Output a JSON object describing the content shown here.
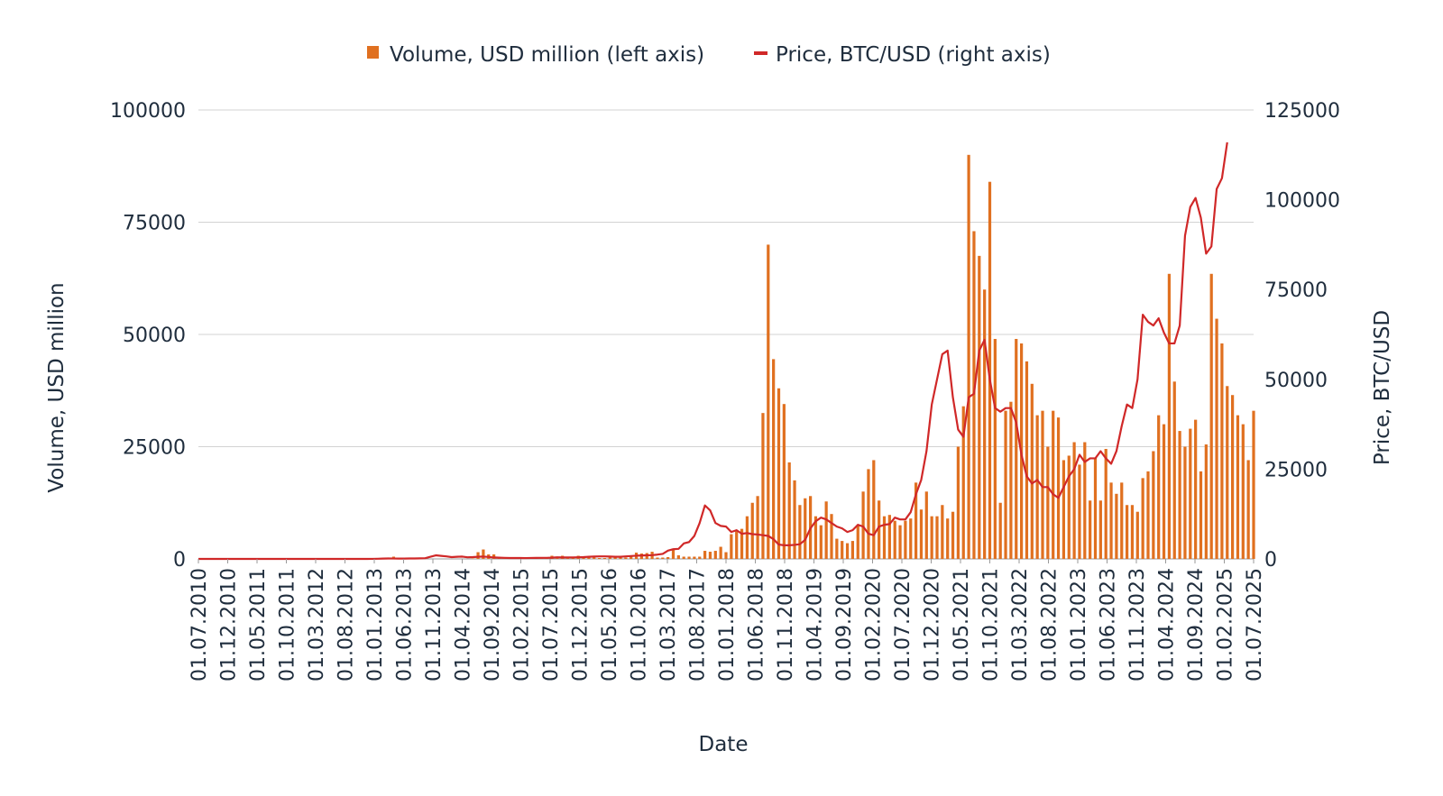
{
  "chart_data": {
    "type": "bar",
    "title": "",
    "xlabel": "Date",
    "ylabel": "Volume, USD million",
    "y2label": "Price, BTC/USD",
    "ylim": [
      0,
      100000
    ],
    "y2lim": [
      0,
      125000
    ],
    "yticks": [
      0,
      25000,
      50000,
      75000,
      100000
    ],
    "y2ticks": [
      0,
      25000,
      50000,
      75000,
      100000,
      125000
    ],
    "grid": true,
    "legend_position": "top-center",
    "colors": {
      "volume": "#E07020",
      "price": "#D02828",
      "grid": "#D3D3D3",
      "text": "#1F2D3D"
    },
    "x_tick_labels": [
      "01.07.2010",
      "01.12.2010",
      "01.05.2011",
      "01.10.2011",
      "01.03.2012",
      "01.08.2012",
      "01.01.2013",
      "01.06.2013",
      "01.11.2013",
      "01.04.2014",
      "01.09.2014",
      "01.02.2015",
      "01.07.2015",
      "01.12.2015",
      "01.05.2016",
      "01.10.2016",
      "01.03.2017",
      "01.08.2017",
      "01.01.2018",
      "01.06.2018",
      "01.11.2018",
      "01.04.2019",
      "01.09.2019",
      "01.02.2020",
      "01.07.2020",
      "01.12.2020",
      "01.05.2021",
      "01.10.2021",
      "01.03.2022",
      "01.08.2022",
      "01.01.2023",
      "01.06.2023",
      "01.11.2023",
      "01.04.2024",
      "01.09.2024",
      "01.02.2025",
      "01.07.2025"
    ],
    "series": [
      {
        "name": "Volume, USD million (left axis)",
        "type": "bar",
        "axis": "left",
        "values": [
          0,
          0,
          0,
          0,
          0,
          0,
          0,
          0,
          0,
          0,
          0,
          0,
          0,
          0,
          0,
          0,
          0,
          0,
          0,
          0,
          0,
          0,
          0,
          0,
          0,
          0,
          0,
          0,
          0,
          0,
          0,
          0,
          0,
          0,
          100,
          0,
          200,
          500,
          200,
          0,
          100,
          0,
          0,
          0,
          0,
          0,
          0,
          0,
          0,
          0,
          0,
          0,
          100,
          1500,
          2100,
          1000,
          1000,
          300,
          400,
          300,
          200,
          300,
          400,
          300,
          300,
          300,
          300,
          700,
          500,
          700,
          400,
          300,
          700,
          400,
          500,
          300,
          200,
          200,
          400,
          400,
          300,
          300,
          500,
          1400,
          1200,
          1300,
          1600,
          300,
          300,
          400,
          2300,
          800,
          500,
          500,
          500,
          500,
          1800,
          1600,
          1800,
          2700,
          1500,
          5500,
          6200,
          6700,
          9500,
          12500,
          14000,
          32500,
          70000,
          44500,
          38000,
          34500,
          21500,
          17500,
          12000,
          13500,
          14000,
          9500,
          7500,
          12800,
          10000,
          4500,
          4000,
          3500,
          4000,
          7500,
          15000,
          20000,
          22000,
          13000,
          9500,
          9800,
          8500,
          7500,
          8500,
          9000,
          17000,
          11000,
          15000,
          9500,
          9500,
          12000,
          9000,
          10500,
          25000,
          34000,
          90000,
          73000,
          67500,
          60000,
          84000,
          49000,
          12500,
          33000,
          35000,
          49000,
          48000,
          44000,
          39000,
          32000,
          33000,
          25000,
          33000,
          31500,
          22000,
          23000,
          26000,
          21000,
          26000,
          13000,
          22500,
          13000,
          24500,
          17000,
          14500,
          17000,
          12000,
          12000,
          10500,
          18000,
          19500,
          24000,
          32000,
          30000,
          63500,
          39500,
          28500,
          25000,
          29000,
          31000,
          19500,
          25500,
          63500,
          53500,
          48000,
          38500,
          36500,
          32000,
          30000,
          22000,
          33000
        ]
      },
      {
        "name": "Price, BTC/USD (right axis)",
        "type": "line",
        "axis": "right",
        "values": [
          0,
          0,
          0,
          0,
          0,
          0,
          0,
          0,
          0,
          0,
          0,
          0,
          0,
          0,
          0,
          0,
          0,
          0,
          0,
          0,
          0,
          0,
          0,
          0,
          0,
          0,
          0,
          0,
          0,
          0,
          0,
          0,
          0,
          20,
          50,
          100,
          120,
          110,
          100,
          100,
          120,
          130,
          150,
          200,
          600,
          1000,
          850,
          700,
          500,
          600,
          650,
          450,
          500,
          600,
          650,
          550,
          400,
          350,
          300,
          250,
          250,
          250,
          230,
          260,
          280,
          300,
          300,
          350,
          450,
          400,
          420,
          420,
          450,
          500,
          600,
          650,
          700,
          700,
          650,
          600,
          600,
          700,
          800,
          900,
          950,
          1000,
          1050,
          1200,
          1400,
          2300,
          2700,
          2800,
          4300,
          4700,
          6400,
          10000,
          14900,
          13500,
          10000,
          9200,
          9000,
          7500,
          8000,
          7000,
          7200,
          6900,
          6800,
          6600,
          6400,
          5500,
          4000,
          3800,
          3800,
          3900,
          4100,
          5300,
          8500,
          10500,
          11500,
          11000,
          10000,
          9000,
          8500,
          7500,
          8000,
          9500,
          9000,
          7000,
          6600,
          9000,
          9500,
          9700,
          11500,
          11000,
          11000,
          13000,
          18000,
          22000,
          30000,
          43000,
          50000,
          57000,
          58000,
          45000,
          36000,
          34000,
          45000,
          46000,
          58000,
          61000,
          50000,
          42000,
          41000,
          42000,
          42000,
          38000,
          29000,
          23000,
          21000,
          22000,
          20000,
          20000,
          18000,
          17000,
          20000,
          23000,
          25000,
          29000,
          27000,
          28000,
          28000,
          30000,
          28000,
          26500,
          30000,
          37000,
          43000,
          42000,
          50000,
          68000,
          66000,
          65000,
          67000,
          63000,
          60000,
          60000,
          65000,
          90000,
          98000,
          100500,
          95000,
          85000,
          87000,
          103000,
          106000,
          116000
        ]
      }
    ]
  },
  "legend": {
    "volume_label": "Volume, USD million (left axis)",
    "price_label": "Price, BTC/USD (right axis)"
  }
}
